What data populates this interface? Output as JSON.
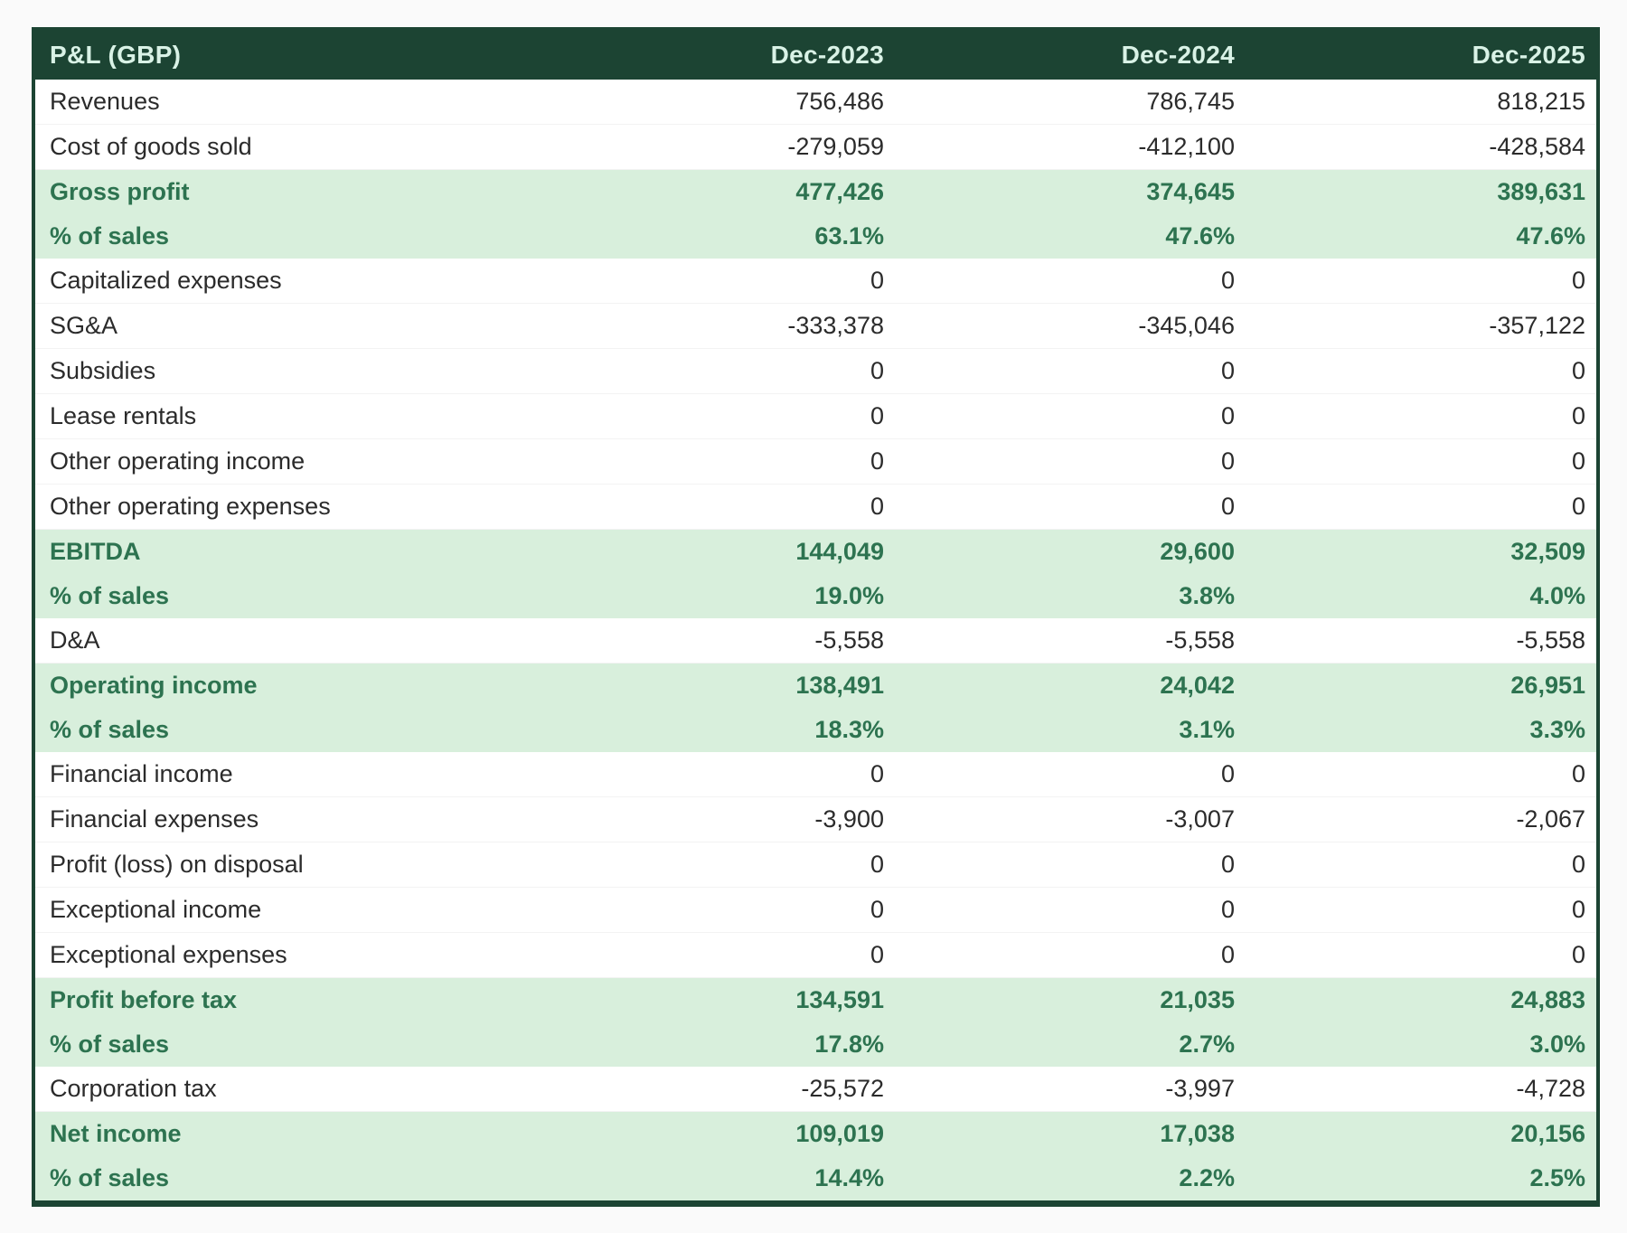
{
  "colors": {
    "frame": "#1c4433",
    "header_bg": "#1c4433",
    "header_text": "#d9f2e6",
    "highlight_bg": "#d8efdc",
    "highlight_text": "#2d7350",
    "body_text": "#2b2b2b",
    "page_bg": "#fafafa"
  },
  "table": {
    "title": "P&L (GBP)",
    "columns": [
      "Dec-2023",
      "Dec-2024",
      "Dec-2025"
    ],
    "rows": [
      {
        "label": "Revenues",
        "values": [
          "756,486",
          "786,745",
          "818,215"
        ],
        "highlight": false
      },
      {
        "label": "Cost of goods sold",
        "values": [
          "-279,059",
          "-412,100",
          "-428,584"
        ],
        "highlight": false
      },
      {
        "label": "Gross profit",
        "values": [
          "477,426",
          "374,645",
          "389,631"
        ],
        "highlight": true
      },
      {
        "label": "% of sales",
        "values": [
          "63.1%",
          "47.6%",
          "47.6%"
        ],
        "highlight": true
      },
      {
        "label": "Capitalized expenses",
        "values": [
          "0",
          "0",
          "0"
        ],
        "highlight": false
      },
      {
        "label": "SG&A",
        "values": [
          "-333,378",
          "-345,046",
          "-357,122"
        ],
        "highlight": false
      },
      {
        "label": "Subsidies",
        "values": [
          "0",
          "0",
          "0"
        ],
        "highlight": false
      },
      {
        "label": "Lease rentals",
        "values": [
          "0",
          "0",
          "0"
        ],
        "highlight": false
      },
      {
        "label": "Other operating income",
        "values": [
          "0",
          "0",
          "0"
        ],
        "highlight": false
      },
      {
        "label": "Other operating expenses",
        "values": [
          "0",
          "0",
          "0"
        ],
        "highlight": false
      },
      {
        "label": "EBITDA",
        "values": [
          "144,049",
          "29,600",
          "32,509"
        ],
        "highlight": true
      },
      {
        "label": "% of sales",
        "values": [
          "19.0%",
          "3.8%",
          "4.0%"
        ],
        "highlight": true
      },
      {
        "label": "D&A",
        "values": [
          "-5,558",
          "-5,558",
          "-5,558"
        ],
        "highlight": false
      },
      {
        "label": "Operating income",
        "values": [
          "138,491",
          "24,042",
          "26,951"
        ],
        "highlight": true
      },
      {
        "label": "% of sales",
        "values": [
          "18.3%",
          "3.1%",
          "3.3%"
        ],
        "highlight": true
      },
      {
        "label": "Financial income",
        "values": [
          "0",
          "0",
          "0"
        ],
        "highlight": false
      },
      {
        "label": "Financial expenses",
        "values": [
          "-3,900",
          "-3,007",
          "-2,067"
        ],
        "highlight": false
      },
      {
        "label": "Profit (loss) on disposal",
        "values": [
          "0",
          "0",
          "0"
        ],
        "highlight": false
      },
      {
        "label": "Exceptional income",
        "values": [
          "0",
          "0",
          "0"
        ],
        "highlight": false
      },
      {
        "label": "Exceptional expenses",
        "values": [
          "0",
          "0",
          "0"
        ],
        "highlight": false
      },
      {
        "label": "Profit before tax",
        "values": [
          "134,591",
          "21,035",
          "24,883"
        ],
        "highlight": true
      },
      {
        "label": "% of sales",
        "values": [
          "17.8%",
          "2.7%",
          "3.0%"
        ],
        "highlight": true
      },
      {
        "label": "Corporation tax",
        "values": [
          "-25,572",
          "-3,997",
          "-4,728"
        ],
        "highlight": false
      },
      {
        "label": "Net income",
        "values": [
          "109,019",
          "17,038",
          "20,156"
        ],
        "highlight": true
      },
      {
        "label": "% of sales",
        "values": [
          "14.4%",
          "2.2%",
          "2.5%"
        ],
        "highlight": true
      }
    ]
  }
}
